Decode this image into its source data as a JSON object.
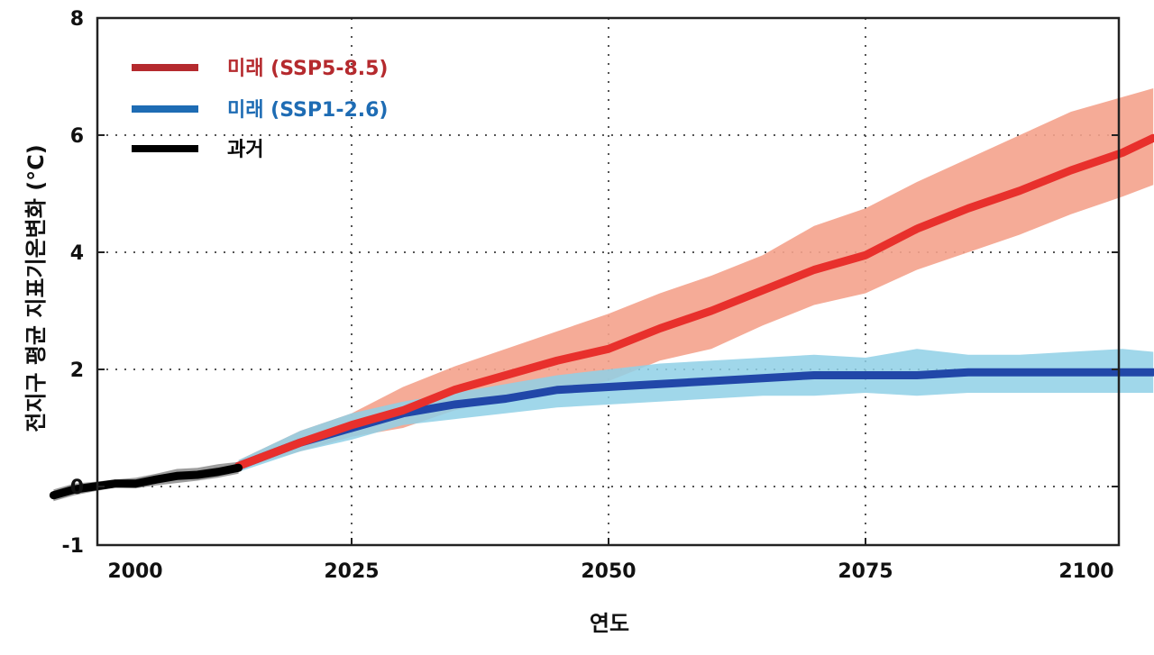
{
  "chart_data": {
    "type": "line",
    "title": "",
    "xlabel": "연도",
    "ylabel": "전지구 평균 지표기온변화 (°C)",
    "xlim": [
      1996,
      2103
    ],
    "ylim": [
      -1,
      8
    ],
    "grid": true,
    "legend_position": "top-left",
    "x_ticks": [
      2000,
      2025,
      2050,
      2075,
      2100
    ],
    "y_ticks": [
      -1,
      0,
      2,
      4,
      6,
      8
    ],
    "series": [
      {
        "name": "미래 (SSP5-8.5)",
        "color": "#e8302c",
        "legend_color": "#b52a2e",
        "band_color": "#f4a28c",
        "x": [
          2014,
          2020,
          2025,
          2030,
          2035,
          2040,
          2045,
          2050,
          2055,
          2060,
          2065,
          2070,
          2075,
          2080,
          2085,
          2090,
          2095,
          2100,
          2103
        ],
        "values": [
          0.35,
          0.75,
          1.05,
          1.3,
          1.65,
          1.9,
          2.15,
          2.35,
          2.7,
          3.0,
          3.35,
          3.7,
          3.95,
          4.4,
          4.75,
          5.05,
          5.4,
          5.7,
          5.95
        ],
        "band_upper": [
          0.45,
          0.95,
          1.25,
          1.7,
          2.05,
          2.35,
          2.65,
          2.95,
          3.3,
          3.6,
          3.95,
          4.45,
          4.75,
          5.2,
          5.6,
          6.0,
          6.4,
          6.65,
          6.8
        ],
        "band_lower": [
          0.3,
          0.6,
          0.85,
          1.0,
          1.3,
          1.5,
          1.65,
          1.8,
          2.15,
          2.35,
          2.75,
          3.1,
          3.3,
          3.7,
          4.0,
          4.3,
          4.65,
          4.95,
          5.15
        ]
      },
      {
        "name": "미래 (SSP1-2.6)",
        "color": "#2147a8",
        "legend_color": "#1e6cb4",
        "band_color": "#8fd0e6",
        "x": [
          2014,
          2020,
          2025,
          2030,
          2035,
          2040,
          2045,
          2050,
          2055,
          2060,
          2065,
          2070,
          2075,
          2080,
          2085,
          2090,
          2095,
          2100,
          2103
        ],
        "values": [
          0.35,
          0.75,
          1.0,
          1.25,
          1.4,
          1.5,
          1.65,
          1.7,
          1.75,
          1.8,
          1.85,
          1.9,
          1.9,
          1.9,
          1.95,
          1.95,
          1.95,
          1.95,
          1.95
        ],
        "band_upper": [
          0.45,
          0.95,
          1.25,
          1.45,
          1.6,
          1.75,
          1.9,
          2.0,
          2.1,
          2.15,
          2.2,
          2.25,
          2.2,
          2.35,
          2.25,
          2.25,
          2.3,
          2.35,
          2.3
        ],
        "band_lower": [
          0.25,
          0.6,
          0.8,
          1.05,
          1.15,
          1.25,
          1.35,
          1.4,
          1.45,
          1.5,
          1.55,
          1.55,
          1.6,
          1.55,
          1.6,
          1.6,
          1.6,
          1.6,
          1.6
        ]
      },
      {
        "name": "과거",
        "color": "#000000",
        "legend_color": "#000000",
        "band_color": "#8c8c8c",
        "x": [
          1996,
          1998,
          2000,
          2002,
          2004,
          2006,
          2008,
          2010,
          2012,
          2014
        ],
        "values": [
          -0.15,
          -0.05,
          0.0,
          0.05,
          0.05,
          0.12,
          0.18,
          0.2,
          0.25,
          0.32
        ],
        "band_upper": [
          -0.05,
          0.05,
          0.08,
          0.12,
          0.15,
          0.22,
          0.3,
          0.32,
          0.38,
          0.42
        ],
        "band_lower": [
          -0.25,
          -0.15,
          -0.08,
          -0.02,
          -0.03,
          0.02,
          0.06,
          0.1,
          0.15,
          0.22
        ]
      }
    ]
  }
}
